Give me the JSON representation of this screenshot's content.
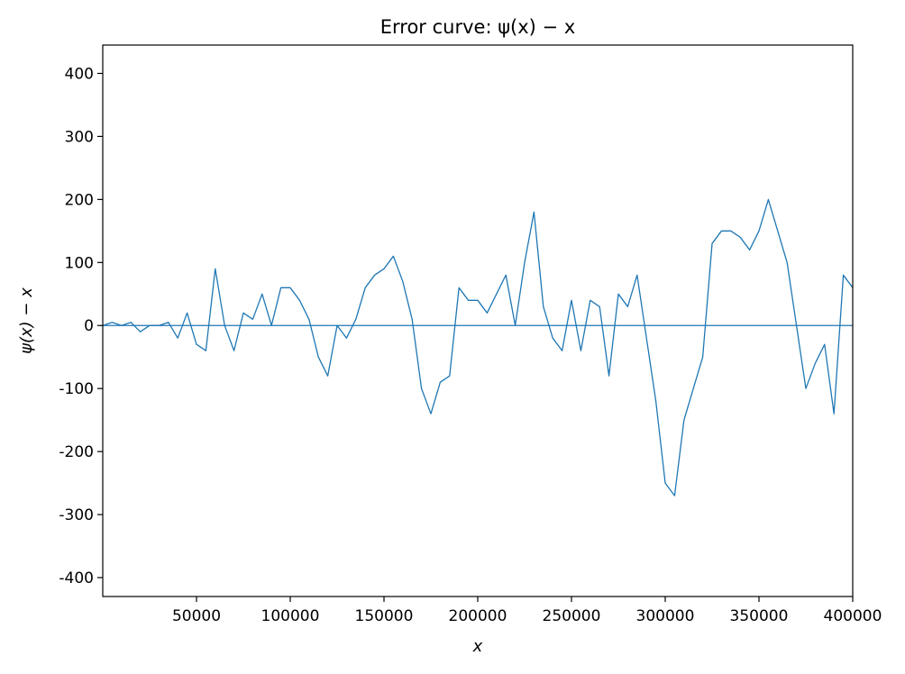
{
  "chart_data": {
    "type": "line",
    "title": "Error curve: ψ(x) − x",
    "xlabel": "x",
    "ylabel": "ψ(x) − x",
    "xlim": [
      1,
      400000
    ],
    "ylim": [
      -430,
      445
    ],
    "x_ticks": [
      50000,
      100000,
      150000,
      200000,
      250000,
      300000,
      350000,
      400000
    ],
    "x_tick_labels": [
      "50000",
      "100000",
      "150000",
      "200000",
      "250000",
      "300000",
      "350000",
      "400000"
    ],
    "y_ticks": [
      400,
      300,
      200,
      100,
      0,
      -100,
      -200,
      -300,
      -400
    ],
    "y_tick_labels": [
      "400",
      "300",
      "200",
      "100",
      "0",
      "-100",
      "-200",
      "-300",
      "-400"
    ],
    "grid": false,
    "legend": "none",
    "reference_line": 0,
    "series": [
      {
        "color": "#1f77b4",
        "x": [
          1,
          5000,
          10000,
          15000,
          20000,
          25000,
          30000,
          35000,
          40000,
          45000,
          50000,
          55000,
          60000,
          65000,
          70000,
          75000,
          80000,
          85000,
          90000,
          95000,
          100000,
          105000,
          110000,
          115000,
          120000,
          125000,
          130000,
          135000,
          140000,
          145000,
          150000,
          155000,
          160000,
          165000,
          170000,
          175000,
          180000,
          185000,
          190000,
          195000,
          200000,
          205000,
          210000,
          215000,
          220000,
          225000,
          230000,
          235000,
          240000,
          245000,
          250000,
          255000,
          260000,
          265000,
          270000,
          275000,
          280000,
          285000,
          290000,
          295000,
          300000,
          305000,
          310000,
          315000,
          320000,
          325000,
          330000,
          335000,
          340000,
          345000,
          350000,
          355000,
          360000,
          365000,
          370000,
          375000,
          380000,
          385000,
          390000,
          395000,
          400000
        ],
        "y": [
          0,
          5,
          0,
          5,
          -10,
          0,
          0,
          5,
          -20,
          20,
          -30,
          -40,
          90,
          0,
          -40,
          20,
          10,
          50,
          0,
          60,
          60,
          40,
          10,
          -50,
          -80,
          0,
          -20,
          10,
          60,
          80,
          90,
          110,
          70,
          10,
          -100,
          -140,
          -90,
          -80,
          60,
          40,
          40,
          20,
          50,
          80,
          0,
          100,
          180,
          30,
          -20,
          -40,
          40,
          -40,
          40,
          30,
          -80,
          50,
          30,
          80,
          -20,
          -120,
          -250,
          -270,
          -150,
          -100,
          -50,
          130,
          150,
          150,
          140,
          120,
          150,
          200,
          150,
          100,
          0,
          -100,
          -60,
          -30,
          -140,
          80,
          60
        ]
      }
    ]
  }
}
